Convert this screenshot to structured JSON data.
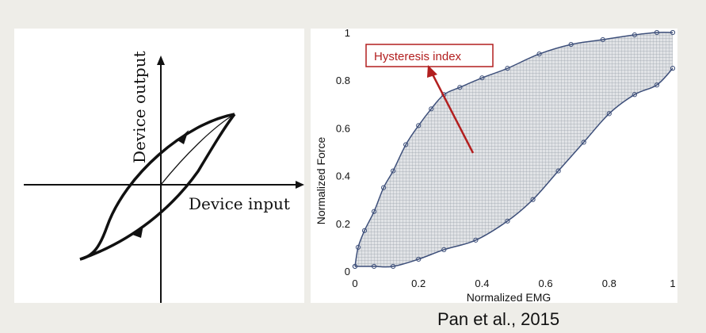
{
  "left_figure": {
    "y_axis_label": "Device output",
    "x_axis_label": "Device input"
  },
  "chart_data": {
    "type": "area",
    "xlabel": "Normalized EMG",
    "ylabel": "Normalized Force",
    "xlim": [
      0,
      1
    ],
    "ylim": [
      0,
      1
    ],
    "x_ticks": [
      "0",
      "0.2",
      "0.4",
      "0.6",
      "0.8",
      "1"
    ],
    "y_ticks": [
      "0",
      "0.2",
      "0.4",
      "0.6",
      "0.8",
      "1"
    ],
    "grid": false,
    "annotation": "Hysteresis index",
    "colors": {
      "curve": "#3d4f7a",
      "fill": "#c8ccd2",
      "annotation": "#b21f1f"
    },
    "series": [
      {
        "values_x": [
          0.0,
          0.01,
          0.03,
          0.06,
          0.09,
          0.12,
          0.16,
          0.2,
          0.24,
          0.28,
          0.33,
          0.4,
          0.48,
          0.58,
          0.68,
          0.78,
          0.88,
          0.95,
          1.0
        ],
        "values_y": [
          0.02,
          0.1,
          0.17,
          0.25,
          0.35,
          0.42,
          0.53,
          0.61,
          0.68,
          0.74,
          0.77,
          0.81,
          0.85,
          0.91,
          0.95,
          0.97,
          0.99,
          1.0,
          1.0
        ]
      },
      {
        "values_x": [
          0.0,
          0.06,
          0.12,
          0.2,
          0.28,
          0.38,
          0.48,
          0.56,
          0.64,
          0.72,
          0.8,
          0.88,
          0.95,
          1.0
        ],
        "values_y": [
          0.02,
          0.02,
          0.02,
          0.05,
          0.09,
          0.13,
          0.21,
          0.3,
          0.42,
          0.54,
          0.66,
          0.74,
          0.78,
          0.85
        ]
      }
    ]
  },
  "citation": "Pan et al., 2015"
}
